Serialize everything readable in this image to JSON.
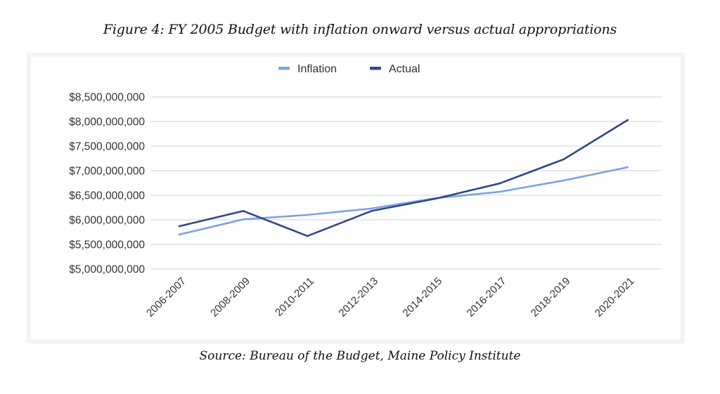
{
  "figure": {
    "title": "Figure 4: FY 2005 Budget with inflation onward versus actual appropriations",
    "source": "Source: Bureau of the Budget, Maine Policy Institute"
  },
  "chart_data": {
    "type": "line",
    "title": "Figure 4: FY 2005 Budget with inflation onward versus actual appropriations",
    "xlabel": "",
    "ylabel": "",
    "categories": [
      "2006-2007",
      "2008-2009",
      "2010-2011",
      "2012-2013",
      "2014-2015",
      "2016-2017",
      "2018-2019",
      "2020-2021"
    ],
    "series": [
      {
        "name": "Inflation",
        "color": "#7ba3e3",
        "values": [
          5700000000,
          6010000000,
          6100000000,
          6230000000,
          6440000000,
          6570000000,
          6800000000,
          7070000000
        ]
      },
      {
        "name": "Actual",
        "color": "#2f4a83",
        "values": [
          5870000000,
          6180000000,
          5670000000,
          6180000000,
          6430000000,
          6740000000,
          7230000000,
          8030000000
        ]
      }
    ],
    "ylim": [
      5000000000,
      8500000000
    ],
    "yticks": [
      5000000000,
      5500000000,
      6000000000,
      6500000000,
      7000000000,
      7500000000,
      8000000000,
      8500000000
    ],
    "ytick_labels": [
      "$5,000,000,000",
      "$5,500,000,000",
      "$6,000,000,000",
      "$6,500,000,000",
      "$7,000,000,000",
      "$7,500,000,000",
      "$8,000,000,000",
      "$8,500,000,000"
    ],
    "grid": true,
    "legend": "top-center",
    "gridline_color": "#d9d9d9"
  }
}
